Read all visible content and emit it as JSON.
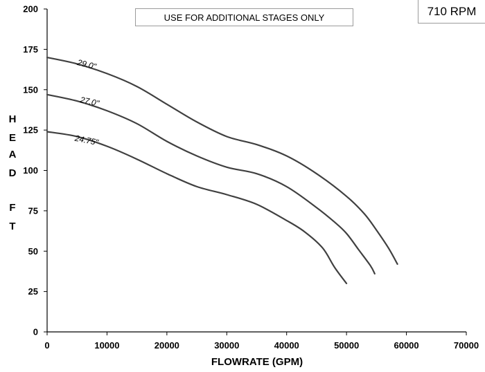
{
  "chart_data": {
    "type": "line",
    "note": "USE FOR ADDITIONAL STAGES ONLY",
    "rpm_label": "710 RPM",
    "xlabel": "FLOWRATE (GPM)",
    "ylabel": "HEAD FT",
    "xlim": [
      0,
      70000
    ],
    "ylim": [
      0,
      200
    ],
    "x_ticks": [
      "0",
      "10000",
      "20000",
      "30000",
      "40000",
      "50000",
      "60000",
      "70000"
    ],
    "y_ticks": [
      "0",
      "25",
      "50",
      "75",
      "100",
      "125",
      "150",
      "175",
      "200"
    ],
    "grid": false,
    "series": [
      {
        "name": "29.0\"",
        "x": [
          0,
          5000,
          10000,
          15000,
          20000,
          25000,
          30000,
          35000,
          40000,
          45000,
          50000,
          53000,
          55000,
          57000,
          58500
        ],
        "y": [
          170,
          166,
          160,
          152,
          141,
          130,
          121,
          116,
          109,
          98,
          84,
          73,
          63,
          52,
          42
        ]
      },
      {
        "name": "27.0\"",
        "x": [
          0,
          5000,
          10000,
          15000,
          20000,
          25000,
          30000,
          35000,
          40000,
          45000,
          48000,
          50000,
          52000,
          54000,
          54700
        ],
        "y": [
          147,
          143,
          137,
          129,
          118,
          109,
          102,
          98,
          90,
          77,
          68,
          61,
          51,
          41,
          36
        ]
      },
      {
        "name": "24.75\"",
        "x": [
          0,
          5000,
          10000,
          15000,
          20000,
          25000,
          30000,
          35000,
          40000,
          43000,
          46000,
          48000,
          50000
        ],
        "y": [
          124,
          121,
          115,
          107,
          98,
          90,
          85,
          79,
          69,
          62,
          52,
          40,
          30
        ]
      }
    ]
  },
  "axis_title_letters": [
    "H",
    "E",
    "A",
    "D",
    "F",
    "T"
  ]
}
